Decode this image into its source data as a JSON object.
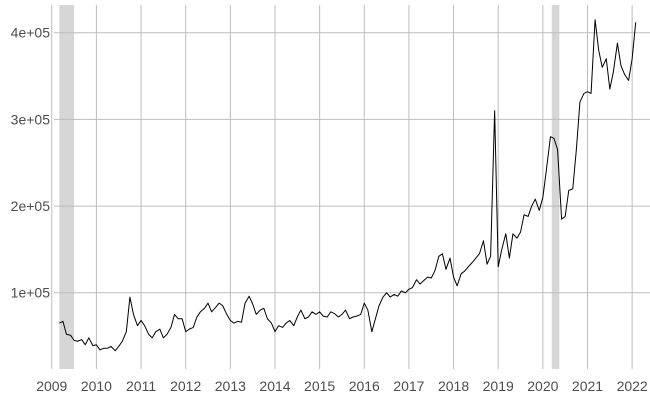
{
  "chart_data": {
    "type": "line",
    "title": "",
    "xlabel": "",
    "ylabel": "",
    "xlim": [
      2009.05,
      2022.4
    ],
    "ylim": [
      12000,
      432000
    ],
    "x_ticks": [
      2009,
      2010,
      2011,
      2012,
      2013,
      2014,
      2015,
      2016,
      2017,
      2018,
      2019,
      2020,
      2021,
      2022
    ],
    "x_tick_labels": [
      "2009",
      "2010",
      "2011",
      "2012",
      "2013",
      "2014",
      "2015",
      "2016",
      "2017",
      "2018",
      "2019",
      "2020",
      "2021",
      "2022"
    ],
    "y_ticks": [
      100000,
      200000,
      300000,
      400000
    ],
    "y_tick_labels": [
      "1e+05",
      "2e+05",
      "3e+05",
      "4e+05"
    ],
    "grid": true,
    "legend": "none",
    "line_color": "#000000",
    "shade_color": "#d6d6d6",
    "shaded_periods": [
      [
        2009.17,
        2009.5
      ],
      [
        2020.2,
        2020.37
      ]
    ],
    "series": [
      {
        "x": [
          2009.17,
          2009.25,
          2009.33,
          2009.42,
          2009.5,
          2009.58,
          2009.67,
          2009.75,
          2009.83,
          2009.92,
          2010.0,
          2010.08,
          2010.17,
          2010.25,
          2010.33,
          2010.42,
          2010.5,
          2010.58,
          2010.67,
          2010.75,
          2010.83,
          2010.92,
          2011.0,
          2011.08,
          2011.17,
          2011.25,
          2011.33,
          2011.42,
          2011.5,
          2011.58,
          2011.67,
          2011.75,
          2011.83,
          2011.92,
          2012.0,
          2012.08,
          2012.17,
          2012.25,
          2012.33,
          2012.42,
          2012.5,
          2012.58,
          2012.67,
          2012.75,
          2012.83,
          2012.92,
          2013.0,
          2013.08,
          2013.17,
          2013.25,
          2013.33,
          2013.42,
          2013.5,
          2013.58,
          2013.67,
          2013.75,
          2013.83,
          2013.92,
          2014.0,
          2014.08,
          2014.17,
          2014.25,
          2014.33,
          2014.42,
          2014.5,
          2014.58,
          2014.67,
          2014.75,
          2014.83,
          2014.92,
          2015.0,
          2015.08,
          2015.17,
          2015.25,
          2015.33,
          2015.42,
          2015.5,
          2015.58,
          2015.67,
          2015.75,
          2015.83,
          2015.92,
          2016.0,
          2016.08,
          2016.17,
          2016.25,
          2016.33,
          2016.42,
          2016.5,
          2016.58,
          2016.67,
          2016.75,
          2016.83,
          2016.92,
          2017.0,
          2017.08,
          2017.17,
          2017.25,
          2017.33,
          2017.42,
          2017.5,
          2017.58,
          2017.67,
          2017.75,
          2017.83,
          2017.92,
          2018.0,
          2018.08,
          2018.17,
          2018.25,
          2018.33,
          2018.42,
          2018.5,
          2018.58,
          2018.67,
          2018.75,
          2018.83,
          2018.92,
          2019.0,
          2019.08,
          2019.17,
          2019.25,
          2019.33,
          2019.42,
          2019.5,
          2019.58,
          2019.67,
          2019.75,
          2019.83,
          2019.92,
          2020.0,
          2020.08,
          2020.17,
          2020.25,
          2020.33,
          2020.42,
          2020.5,
          2020.58,
          2020.67,
          2020.75,
          2020.83,
          2020.92,
          2021.0,
          2021.08,
          2021.17,
          2021.25,
          2021.33,
          2021.42,
          2021.5,
          2021.58,
          2021.67,
          2021.75,
          2021.83,
          2021.92,
          2022.0,
          2022.08
        ],
        "values": [
          65000,
          67000,
          52000,
          51000,
          45000,
          44000,
          46000,
          40000,
          48000,
          39000,
          40000,
          34000,
          36000,
          36000,
          38000,
          33000,
          38000,
          44000,
          55000,
          95000,
          75000,
          62000,
          68000,
          62000,
          52000,
          48000,
          55000,
          58000,
          48000,
          52000,
          60000,
          75000,
          70000,
          70000,
          55000,
          58000,
          60000,
          72000,
          78000,
          82000,
          88000,
          78000,
          83000,
          88000,
          85000,
          75000,
          68000,
          65000,
          67000,
          66000,
          88000,
          96000,
          87000,
          75000,
          80000,
          82000,
          70000,
          65000,
          55000,
          62000,
          60000,
          65000,
          68000,
          62000,
          72000,
          80000,
          70000,
          72000,
          78000,
          75000,
          78000,
          73000,
          72000,
          78000,
          76000,
          72000,
          75000,
          80000,
          70000,
          72000,
          73000,
          75000,
          88000,
          80000,
          55000,
          70000,
          85000,
          95000,
          100000,
          95000,
          98000,
          96000,
          102000,
          100000,
          104000,
          106000,
          115000,
          110000,
          114000,
          118000,
          117000,
          125000,
          142000,
          145000,
          127000,
          140000,
          118000,
          108000,
          122000,
          125000,
          130000,
          135000,
          140000,
          145000,
          160000,
          133000,
          142000,
          310000,
          130000,
          150000,
          168000,
          140000,
          168000,
          163000,
          170000,
          190000,
          188000,
          200000,
          208000,
          195000,
          210000,
          242000,
          280000,
          278000,
          265000,
          185000,
          188000,
          218000,
          220000,
          265000,
          320000,
          330000,
          332000,
          330000,
          415000,
          380000,
          360000,
          370000,
          335000,
          355000,
          388000,
          362000,
          352000,
          345000,
          370000,
          412000
        ]
      }
    ]
  }
}
